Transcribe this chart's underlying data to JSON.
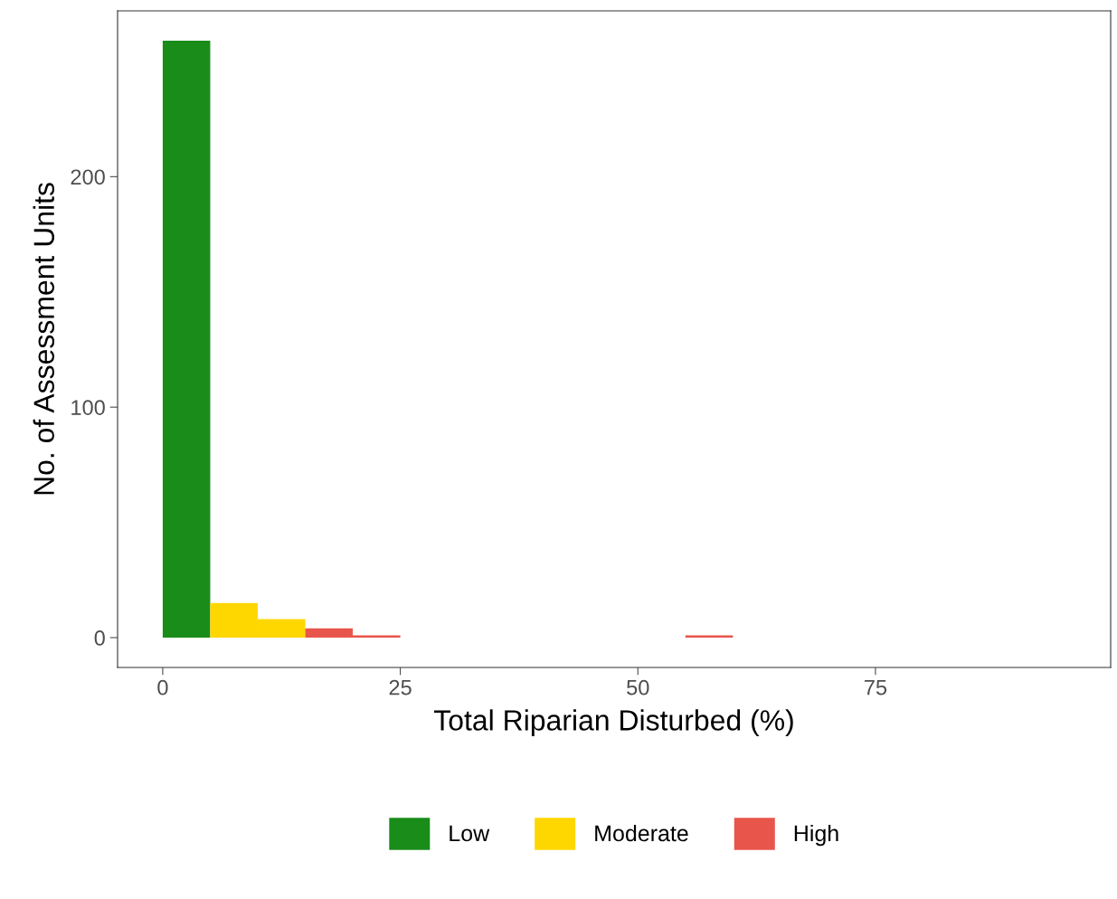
{
  "chart_data": {
    "type": "histogram",
    "xlabel": "Total Riparian Disturbed (%)",
    "ylabel": "No. of Assessment Units",
    "bins": [
      0,
      5,
      10,
      15,
      20,
      25,
      30,
      35,
      40,
      45,
      50,
      55,
      60,
      65,
      70,
      75,
      80,
      85,
      90,
      95
    ],
    "series": [
      {
        "name": "Low",
        "color": "#1a8c1a",
        "values": [
          259,
          0,
          0,
          0,
          0,
          0,
          0,
          0,
          0,
          0,
          0,
          0,
          0,
          0,
          0,
          0,
          0,
          0,
          0
        ]
      },
      {
        "name": "Moderate",
        "color": "#ffd700",
        "values": [
          0,
          15,
          8,
          0,
          0,
          0,
          0,
          0,
          0,
          0,
          0,
          0,
          0,
          0,
          0,
          0,
          0,
          0,
          0
        ]
      },
      {
        "name": "High",
        "color": "#e8554a",
        "values": [
          0,
          0,
          0,
          4,
          1,
          0,
          0,
          0,
          0,
          0,
          0,
          1,
          0,
          0,
          0,
          0,
          0,
          0,
          0
        ]
      }
    ],
    "xlim": [
      -4.75,
      99.75
    ],
    "ylim": [
      -12.95,
      271.95
    ],
    "xticks": [
      0,
      25,
      50,
      75
    ],
    "yticks": [
      0,
      100,
      200
    ],
    "grid": false,
    "legend": "bottom"
  }
}
